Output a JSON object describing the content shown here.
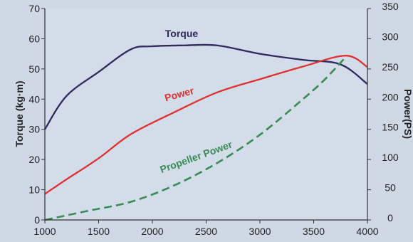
{
  "chart_data": {
    "type": "line",
    "xlabel": "",
    "ylabel_left": "Torque (kg·m)",
    "ylabel_right": "Power(PS)",
    "xlim": [
      1000,
      4000
    ],
    "ylim_left": [
      0,
      70
    ],
    "ylim_right": [
      0,
      350
    ],
    "x_ticks": [
      "1000",
      "1500",
      "2000",
      "2500",
      "3000",
      "3500",
      "4000"
    ],
    "y_left_ticks": [
      "0",
      "10",
      "20",
      "30",
      "40",
      "50",
      "60",
      "70"
    ],
    "y_right_ticks": [
      "0",
      "50",
      "100",
      "150",
      "200",
      "250",
      "300",
      "350"
    ],
    "grid": false,
    "series": [
      {
        "name": "Torque",
        "axis": "left",
        "color": "#2e2a5a",
        "style": "solid",
        "points": [
          [
            1000,
            30
          ],
          [
            1200,
            41
          ],
          [
            1500,
            49
          ],
          [
            1800,
            56.5
          ],
          [
            2000,
            57.5
          ],
          [
            2300,
            57.8
          ],
          [
            2600,
            57.8
          ],
          [
            3000,
            55
          ],
          [
            3400,
            53
          ],
          [
            3750,
            51.5
          ],
          [
            4000,
            45
          ]
        ]
      },
      {
        "name": "Power",
        "axis": "right",
        "color": "#e03030",
        "style": "solid",
        "points": [
          [
            1000,
            43
          ],
          [
            1200,
            67
          ],
          [
            1500,
            102
          ],
          [
            1800,
            142
          ],
          [
            2200,
            178
          ],
          [
            2600,
            211
          ],
          [
            3000,
            233
          ],
          [
            3400,
            254
          ],
          [
            3800,
            272
          ],
          [
            4000,
            253
          ]
        ]
      },
      {
        "name": "Propeller Power",
        "axis": "right",
        "color": "#3a8a58",
        "style": "dashed",
        "points": [
          [
            1000,
            0
          ],
          [
            1400,
            15
          ],
          [
            1800,
            30
          ],
          [
            2200,
            57
          ],
          [
            2600,
            94
          ],
          [
            3000,
            141
          ],
          [
            3400,
            200
          ],
          [
            3600,
            232
          ],
          [
            3800,
            270
          ]
        ]
      }
    ]
  }
}
